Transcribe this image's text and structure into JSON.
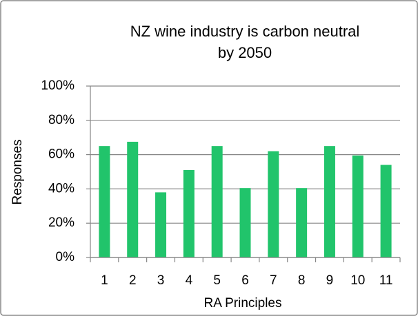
{
  "chart_data": {
    "type": "bar",
    "title": [
      "NZ wine industry is carbon neutral",
      "by 2050"
    ],
    "x_label": "RA Principles",
    "y_label": "Responses",
    "categories": [
      "1",
      "2",
      "3",
      "4",
      "5",
      "6",
      "7",
      "8",
      "9",
      "10",
      "11"
    ],
    "values": [
      65,
      67.5,
      38,
      51,
      65,
      40.5,
      62,
      40.5,
      65,
      59.5,
      54
    ],
    "color": "#21c46b",
    "ylim": [
      0,
      100
    ],
    "yticks": [
      {
        "value": 0,
        "label": "0%"
      },
      {
        "value": 20,
        "label": "20%"
      },
      {
        "value": 40,
        "label": "40%"
      },
      {
        "value": 60,
        "label": "60%"
      },
      {
        "value": 80,
        "label": "80%"
      },
      {
        "value": 100,
        "label": "100%"
      }
    ],
    "grid": true
  }
}
